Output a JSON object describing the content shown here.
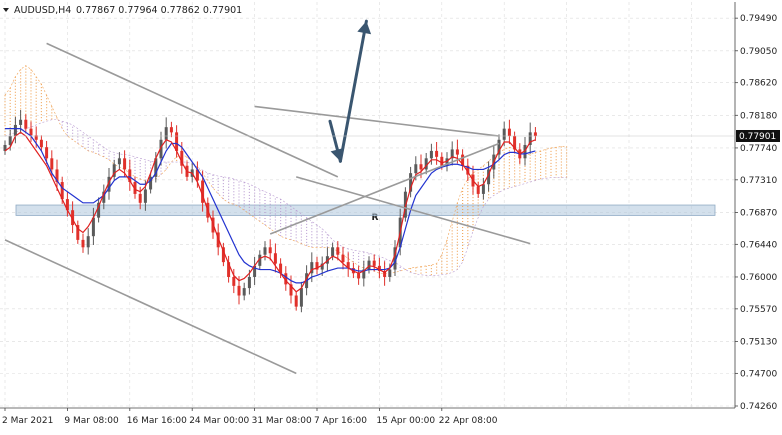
{
  "header": {
    "symbol_tf": "AUDUSD,H4",
    "ohlc": "0.77867 0.77964 0.77862 0.77901"
  },
  "chart_data": {
    "type": "candlestick",
    "symbol": "AUDUSD",
    "timeframe": "H4",
    "ylim": [
      0.7426,
      0.796
    ],
    "y_ticks": [
      "0.79490",
      "0.79050",
      "0.78620",
      "0.78180",
      "0.77740",
      "0.77310",
      "0.76870",
      "0.76440",
      "0.76000",
      "0.75570",
      "0.75130",
      "0.74700",
      "0.74260"
    ],
    "x_ticks": [
      "2 Mar 2021",
      "9 Mar 08:00",
      "16 Mar 16:00",
      "24 Mar 00:00",
      "31 Mar 08:00",
      "7 Apr 16:00",
      "15 Apr 00:00",
      "22 Apr 08:00"
    ],
    "current_price": "0.77901",
    "grid": true,
    "colors": {
      "bull": "#5a5a5a",
      "bear": "#e0302a",
      "tenkan": "#e02020",
      "kijun": "#2233d0",
      "cloud_bull": "#f0a050",
      "cloud_bear": "#b89ad0",
      "trendline": "#9a9a9a",
      "zone": "#aec6dc",
      "arrow": "#3a5670",
      "price_tag": "#111111"
    },
    "closes": [
      0.7778,
      0.779,
      0.7805,
      0.7812,
      0.78,
      0.7791,
      0.7785,
      0.7775,
      0.776,
      0.7745,
      0.7728,
      0.7705,
      0.769,
      0.767,
      0.765,
      0.764,
      0.7655,
      0.768,
      0.77,
      0.7715,
      0.7735,
      0.7752,
      0.776,
      0.7745,
      0.7728,
      0.7712,
      0.77,
      0.7718,
      0.7735,
      0.776,
      0.7785,
      0.7802,
      0.7795,
      0.777,
      0.775,
      0.7735,
      0.7745,
      0.773,
      0.77,
      0.768,
      0.766,
      0.764,
      0.762,
      0.76,
      0.7588,
      0.7575,
      0.7585,
      0.76,
      0.7615,
      0.763,
      0.764,
      0.7632,
      0.7618,
      0.7605,
      0.759,
      0.7575,
      0.756,
      0.7585,
      0.7605,
      0.762,
      0.761,
      0.7618,
      0.7628,
      0.764,
      0.763,
      0.762,
      0.7612,
      0.7605,
      0.7598,
      0.761,
      0.7622,
      0.7615,
      0.7608,
      0.76,
      0.761,
      0.764,
      0.768,
      0.7715,
      0.774,
      0.7752,
      0.7745,
      0.776,
      0.777,
      0.7762,
      0.775,
      0.776,
      0.7772,
      0.7765,
      0.775,
      0.7738,
      0.7722,
      0.7712,
      0.7725,
      0.7745,
      0.7765,
      0.7785,
      0.78,
      0.779,
      0.7772,
      0.776,
      0.7778,
      0.7795,
      0.779
    ],
    "tenkan": [
      0.777,
      0.7775,
      0.779,
      0.7795,
      0.779,
      0.778,
      0.777,
      0.776,
      0.775,
      0.7735,
      0.772,
      0.7705,
      0.769,
      0.7678,
      0.7665,
      0.766,
      0.7668,
      0.768,
      0.7695,
      0.7712,
      0.7728,
      0.774,
      0.7745,
      0.774,
      0.773,
      0.7718,
      0.7715,
      0.7722,
      0.774,
      0.776,
      0.7775,
      0.7785,
      0.7782,
      0.777,
      0.7755,
      0.7742,
      0.774,
      0.7728,
      0.771,
      0.769,
      0.7672,
      0.7652,
      0.7635,
      0.7618,
      0.7602,
      0.7595,
      0.7598,
      0.7605,
      0.7615,
      0.7625,
      0.7628,
      0.7625,
      0.7615,
      0.7605,
      0.7595,
      0.7588,
      0.758,
      0.7585,
      0.7598,
      0.761,
      0.7612,
      0.7616,
      0.7622,
      0.7628,
      0.7625,
      0.7618,
      0.7612,
      0.7608,
      0.7605,
      0.7608,
      0.7615,
      0.7614,
      0.761,
      0.7606,
      0.7612,
      0.763,
      0.766,
      0.7695,
      0.772,
      0.7738,
      0.7742,
      0.775,
      0.7758,
      0.7758,
      0.7754,
      0.7756,
      0.7762,
      0.776,
      0.7752,
      0.7742,
      0.773,
      0.7722,
      0.7725,
      0.7738,
      0.7755,
      0.777,
      0.7782,
      0.7782,
      0.7774,
      0.7766,
      0.777,
      0.7782,
      0.7785
    ],
    "kijun": [
      0.78,
      0.78,
      0.78,
      0.78,
      0.7795,
      0.779,
      0.778,
      0.777,
      0.7755,
      0.774,
      0.773,
      0.772,
      0.7715,
      0.771,
      0.7705,
      0.77,
      0.77,
      0.77,
      0.7705,
      0.771,
      0.772,
      0.773,
      0.7735,
      0.7735,
      0.7735,
      0.773,
      0.7725,
      0.7725,
      0.773,
      0.774,
      0.7755,
      0.777,
      0.778,
      0.778,
      0.7775,
      0.7765,
      0.7755,
      0.7745,
      0.7735,
      0.772,
      0.7705,
      0.769,
      0.7675,
      0.766,
      0.7645,
      0.763,
      0.762,
      0.7615,
      0.7612,
      0.761,
      0.761,
      0.761,
      0.7608,
      0.7605,
      0.76,
      0.7595,
      0.7592,
      0.7592,
      0.7595,
      0.76,
      0.7602,
      0.7605,
      0.7608,
      0.761,
      0.7612,
      0.7612,
      0.7612,
      0.761,
      0.7608,
      0.7608,
      0.761,
      0.761,
      0.761,
      0.761,
      0.7612,
      0.762,
      0.764,
      0.7665,
      0.769,
      0.771,
      0.772,
      0.773,
      0.774,
      0.7745,
      0.7748,
      0.775,
      0.7752,
      0.7752,
      0.775,
      0.7748,
      0.7745,
      0.7745,
      0.7745,
      0.7748,
      0.7752,
      0.7758,
      0.7765,
      0.7768,
      0.7768,
      0.7766,
      0.7766,
      0.7768,
      0.777
    ],
    "cloud": {
      "start": 0,
      "span_a": [
        0.7845,
        0.7855,
        0.787,
        0.788,
        0.7885,
        0.788,
        0.787,
        0.786,
        0.7845,
        0.783,
        0.7815,
        0.78,
        0.779,
        0.7785,
        0.778,
        0.7775,
        0.777,
        0.7768,
        0.7765,
        0.7762,
        0.7758,
        0.7752,
        0.7748,
        0.7745,
        0.774,
        0.7735,
        0.7732,
        0.773,
        0.773,
        0.7732,
        0.7738,
        0.7745,
        0.7755,
        0.7762,
        0.7765,
        0.7762,
        0.7755,
        0.7748,
        0.774,
        0.773,
        0.772,
        0.7712,
        0.7705,
        0.77,
        0.7698,
        0.7695,
        0.769,
        0.7685,
        0.768,
        0.7675,
        0.767,
        0.7665,
        0.766,
        0.7655,
        0.7652,
        0.765,
        0.7648,
        0.7645,
        0.7642,
        0.764,
        0.764,
        0.764,
        0.764,
        0.7638,
        0.7635,
        0.763,
        0.7625,
        0.762,
        0.7615,
        0.7612,
        0.761,
        0.7608,
        0.7605,
        0.7605,
        0.7605,
        0.7606,
        0.7608,
        0.761,
        0.7612,
        0.7613,
        0.7614,
        0.7615,
        0.7616,
        0.7618,
        0.763,
        0.765,
        0.7675,
        0.77,
        0.772,
        0.7732,
        0.774,
        0.7745,
        0.775,
        0.7756,
        0.7762,
        0.7768,
        0.7772,
        0.7775,
        0.7772,
        0.7768,
        0.7766,
        0.7765,
        0.7768,
        0.777,
        0.7772,
        0.7774,
        0.7775,
        0.7776,
        0.7776
      ],
      "span_b": [
        0.779,
        0.7792,
        0.7795,
        0.7798,
        0.78,
        0.7802,
        0.7805,
        0.7808,
        0.781,
        0.7812,
        0.7812,
        0.781,
        0.7808,
        0.7805,
        0.78,
        0.7795,
        0.779,
        0.7785,
        0.778,
        0.7775,
        0.777,
        0.7768,
        0.7766,
        0.7765,
        0.7764,
        0.7762,
        0.776,
        0.7758,
        0.7756,
        0.7755,
        0.7755,
        0.7755,
        0.7755,
        0.7755,
        0.7755,
        0.7755,
        0.7752,
        0.7748,
        0.7744,
        0.774,
        0.7738,
        0.7736,
        0.7735,
        0.7734,
        0.7732,
        0.773,
        0.7728,
        0.7725,
        0.7722,
        0.7718,
        0.7715,
        0.7712,
        0.7708,
        0.7705,
        0.77,
        0.7695,
        0.769,
        0.7685,
        0.768,
        0.7675,
        0.767,
        0.7665,
        0.7658,
        0.765,
        0.7645,
        0.764,
        0.7638,
        0.7636,
        0.7635,
        0.7634,
        0.7632,
        0.763,
        0.7628,
        0.7625,
        0.7622,
        0.762,
        0.7615,
        0.761,
        0.7606,
        0.7604,
        0.7603,
        0.7602,
        0.7602,
        0.7602,
        0.7603,
        0.7604,
        0.7606,
        0.761,
        0.762,
        0.764,
        0.7662,
        0.768,
        0.7695,
        0.7705,
        0.771,
        0.7714,
        0.7718,
        0.772,
        0.7722,
        0.7724,
        0.7726,
        0.7728,
        0.773,
        0.7732,
        0.7733,
        0.7734,
        0.7734,
        0.7734,
        0.7734
      ]
    },
    "support_zone": [
      0.7683,
      0.7697
    ],
    "trendlines": [
      {
        "name": "upper-channel",
        "x": [
          8,
          64
        ],
        "y": [
          0.7915,
          0.7735
        ]
      },
      {
        "name": "lower-channel",
        "x": [
          0,
          56
        ],
        "y": [
          0.765,
          0.747
        ]
      },
      {
        "name": "mid-channel",
        "x": [
          56,
          101
        ],
        "y": [
          0.7735,
          0.7645
        ]
      },
      {
        "name": "triangle-upper",
        "x": [
          48,
          95
        ],
        "y": [
          0.783,
          0.779
        ]
      },
      {
        "name": "triangle-lower",
        "x": [
          51,
          95
        ],
        "y": [
          0.7658,
          0.778
        ]
      }
    ],
    "arrows": [
      {
        "name": "forecast-pullback",
        "x": [
          62.5,
          64.5
        ],
        "y": [
          0.781,
          0.7756
        ]
      },
      {
        "name": "forecast-rise",
        "x": [
          64.5,
          69.5
        ],
        "y": [
          0.7756,
          0.7945
        ]
      }
    ]
  }
}
